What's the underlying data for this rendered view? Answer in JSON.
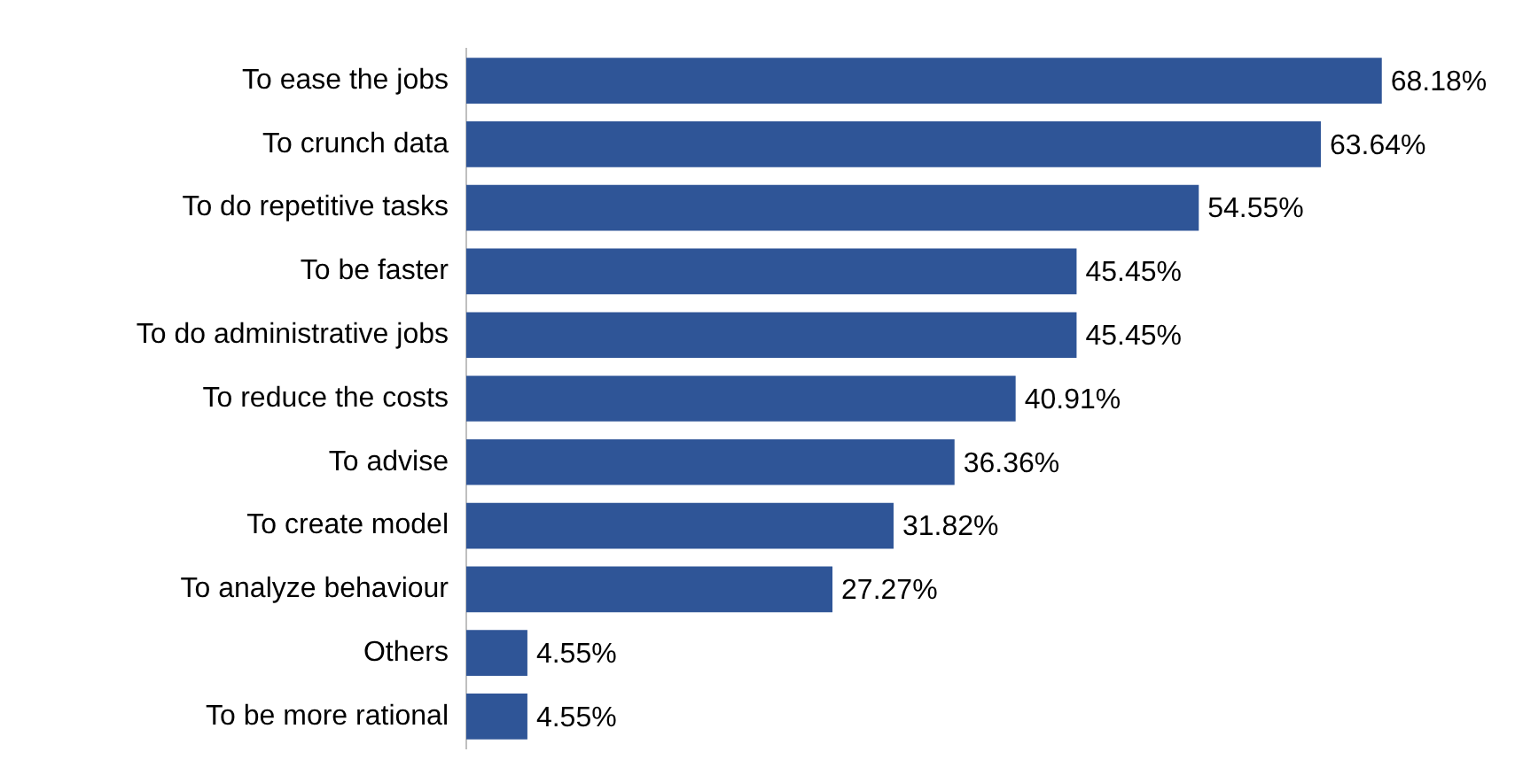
{
  "chart_data": {
    "type": "bar",
    "orientation": "horizontal",
    "categories": [
      "To ease the jobs",
      "To crunch data",
      "To do repetitive tasks",
      "To be faster",
      "To do administrative jobs",
      "To reduce the costs",
      "To advise",
      "To create model",
      "To analyze behaviour",
      "Others",
      "To be more rational"
    ],
    "values": [
      68.18,
      63.64,
      54.55,
      45.45,
      45.45,
      40.91,
      36.36,
      31.82,
      27.27,
      4.55,
      4.55
    ],
    "value_labels": [
      "68.18%",
      "63.64%",
      "54.55%",
      "45.45%",
      "45.45%",
      "40.91%",
      "36.36%",
      "31.82%",
      "27.27%",
      "4.55%",
      "4.55%"
    ],
    "color": "#2f5597",
    "grid": false,
    "legend": false
  }
}
